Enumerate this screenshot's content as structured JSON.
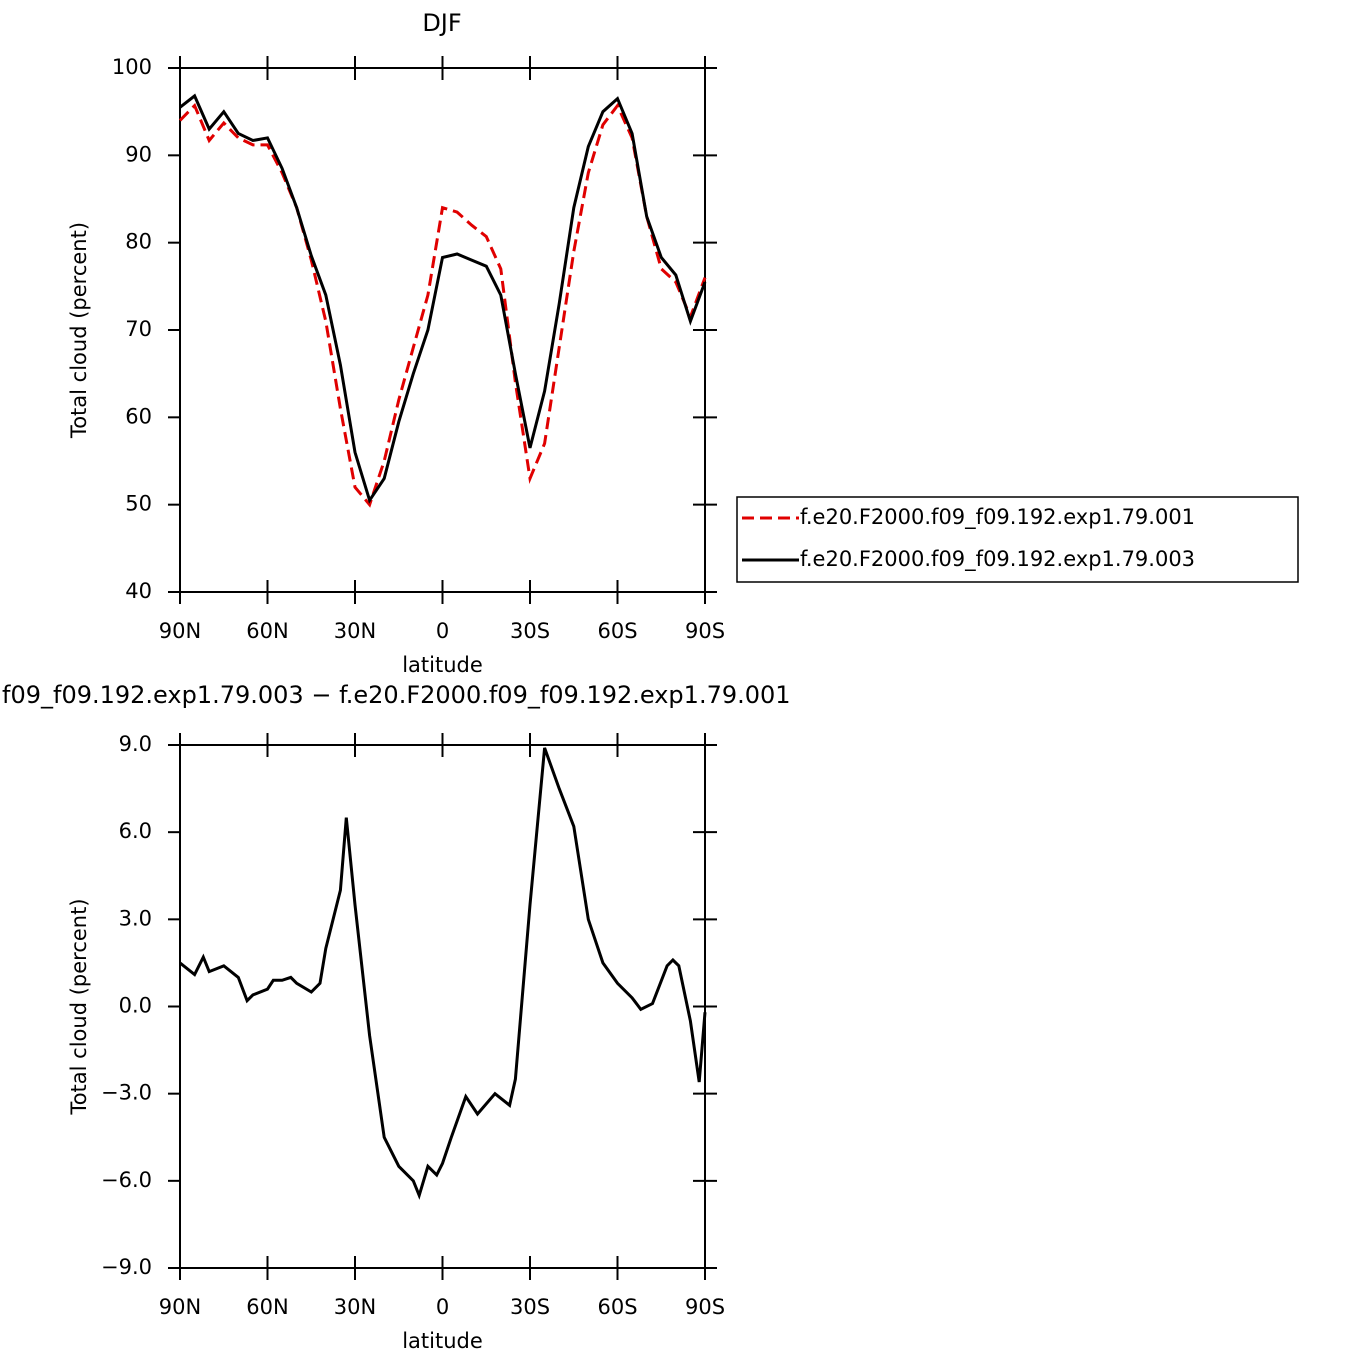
{
  "chart_data": [
    {
      "type": "line",
      "title": "DJF",
      "x_label": "latitude",
      "y_label": "Total cloud (percent)",
      "x": [
        90,
        85,
        80,
        75,
        70,
        65,
        60,
        55,
        50,
        45,
        40,
        35,
        30,
        25,
        20,
        15,
        10,
        5,
        0,
        -5,
        -10,
        -15,
        -20,
        -25,
        -30,
        -35,
        -40,
        -45,
        -50,
        -55,
        -60,
        -65,
        -70,
        -75,
        -80,
        -85,
        -90
      ],
      "series": [
        {
          "name": "f.e20.F2000.f09_f09.192.exp1.79.001",
          "color": "#e00000",
          "dashed": true,
          "values": [
            94,
            95.7,
            91.7,
            93.7,
            92,
            91.2,
            91.2,
            88,
            84,
            78,
            71,
            61,
            52,
            50,
            55,
            62,
            68,
            74,
            84,
            83.5,
            82,
            80.7,
            77,
            64,
            53,
            57,
            68,
            79,
            88,
            93.5,
            95.7,
            92,
            83,
            77,
            75.5,
            71.5,
            76
          ]
        },
        {
          "name": "f.e20.F2000.f09_f09.192.exp1.79.003",
          "color": "#000000",
          "dashed": false,
          "values": [
            95.5,
            96.8,
            93,
            95,
            92.5,
            91.7,
            92,
            88.5,
            84,
            78.5,
            74,
            66,
            56,
            50.5,
            53,
            59.5,
            65,
            70,
            78.3,
            78.7,
            78,
            77.3,
            74,
            65,
            56.5,
            63,
            73,
            84,
            91,
            95,
            96.5,
            92.5,
            83,
            78.3,
            76.3,
            71,
            75.5
          ]
        }
      ],
      "xlim": [
        90,
        -90
      ],
      "xticks": [
        {
          "value": 90,
          "label": "90N"
        },
        {
          "value": 60,
          "label": "60N"
        },
        {
          "value": 30,
          "label": "30N"
        },
        0,
        {
          "value": -30,
          "label": "30S"
        },
        {
          "value": -60,
          "label": "60S"
        },
        {
          "value": -90,
          "label": "90S"
        }
      ],
      "ylim": [
        40,
        100
      ],
      "yticks": [
        40,
        50,
        60,
        70,
        80,
        90,
        100
      ]
    },
    {
      "type": "line",
      "title": "f09_f09.192.exp1.79.003 − f.e20.F2000.f09_f09.192.exp1.79.001",
      "x_label": "latitude",
      "y_label": "Total cloud (percent)",
      "x": [
        90,
        85,
        82,
        80,
        75,
        70,
        67,
        65,
        60,
        58,
        55,
        52,
        50,
        45,
        42,
        40,
        35,
        33,
        30,
        25,
        20,
        15,
        10,
        8,
        5,
        2,
        0,
        -3,
        -8,
        -12,
        -18,
        -23,
        -25,
        -30,
        -35,
        -40,
        -45,
        -50,
        -55,
        -60,
        -65,
        -68,
        -72,
        -77,
        -79,
        -81,
        -85,
        -88,
        -90
      ],
      "series": [
        {
          "name": null,
          "color": "#000000",
          "dashed": false,
          "values": [
            1.5,
            1.1,
            1.7,
            1.2,
            1.4,
            1,
            0.2,
            0.4,
            0.6,
            0.9,
            0.9,
            1.0,
            0.8,
            0.5,
            0.8,
            2,
            4,
            6.5,
            3.5,
            -1,
            -4.5,
            -5.5,
            -6,
            -6.5,
            -5.5,
            -5.8,
            -5.4,
            -4.5,
            -3.1,
            -3.7,
            -3.0,
            -3.4,
            -2.5,
            3.5,
            8.9,
            7.5,
            6.2,
            3,
            1.5,
            0.8,
            0.3,
            -0.1,
            0.1,
            1.4,
            1.6,
            1.4,
            -0.5,
            -2.6,
            -0.2
          ]
        }
      ],
      "xlim": [
        90,
        -90
      ],
      "xticks": [
        {
          "value": 90,
          "label": "90N"
        },
        {
          "value": 60,
          "label": "60N"
        },
        {
          "value": 30,
          "label": "30N"
        },
        0,
        {
          "value": -30,
          "label": "30S"
        },
        {
          "value": -60,
          "label": "60S"
        },
        {
          "value": -90,
          "label": "90S"
        }
      ],
      "ylim": [
        -9,
        9
      ],
      "yticks": [
        {
          "value": -9,
          "label": "−9.0"
        },
        {
          "value": -6,
          "label": "−6.0"
        },
        {
          "value": -3,
          "label": "−3.0"
        },
        {
          "value": 0,
          "label": "0.0"
        },
        {
          "value": 3,
          "label": "3.0"
        },
        {
          "value": 6,
          "label": "6.0"
        },
        {
          "value": 9,
          "label": "9.0"
        }
      ]
    }
  ]
}
